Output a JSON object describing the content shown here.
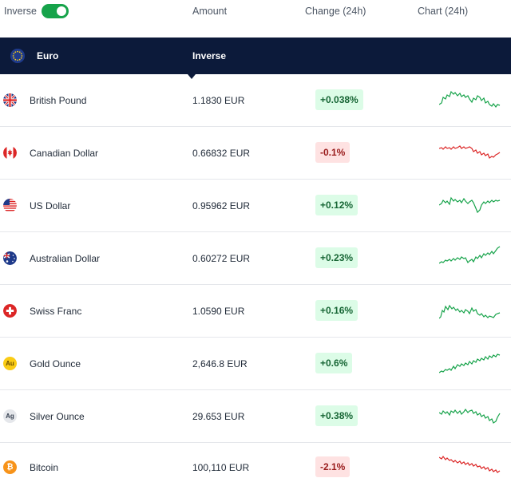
{
  "header": {
    "toggle_label": "Inverse",
    "toggle_on": true,
    "col_amount": "Amount",
    "col_change": "Change (24h)",
    "col_chart": "Chart (24h)"
  },
  "base": {
    "name": "Euro",
    "label": "Inverse"
  },
  "rows": [
    {
      "name": "British Pound",
      "amount": "1.1830 EUR",
      "change": "+0.038%",
      "dir": "up"
    },
    {
      "name": "Canadian Dollar",
      "amount": "0.66832 EUR",
      "change": "-0.1%",
      "dir": "down"
    },
    {
      "name": "US Dollar",
      "amount": "0.95962 EUR",
      "change": "+0.12%",
      "dir": "up"
    },
    {
      "name": "Australian Dollar",
      "amount": "0.60272 EUR",
      "change": "+0.23%",
      "dir": "up"
    },
    {
      "name": "Swiss Franc",
      "amount": "1.0590 EUR",
      "change": "+0.16%",
      "dir": "up"
    },
    {
      "name": "Gold Ounce",
      "amount": "2,646.8 EUR",
      "change": "+0.6%",
      "dir": "up",
      "icon_text": "Au"
    },
    {
      "name": "Silver Ounce",
      "amount": "29.653 EUR",
      "change": "+0.38%",
      "dir": "up",
      "icon_text": "Ag"
    },
    {
      "name": "Bitcoin",
      "amount": "100,110 EUR",
      "change": "-2.1%",
      "dir": "down"
    }
  ],
  "colors": {
    "up": "#16a34a",
    "down": "#dc2626",
    "navy": "#0c1a3a"
  }
}
